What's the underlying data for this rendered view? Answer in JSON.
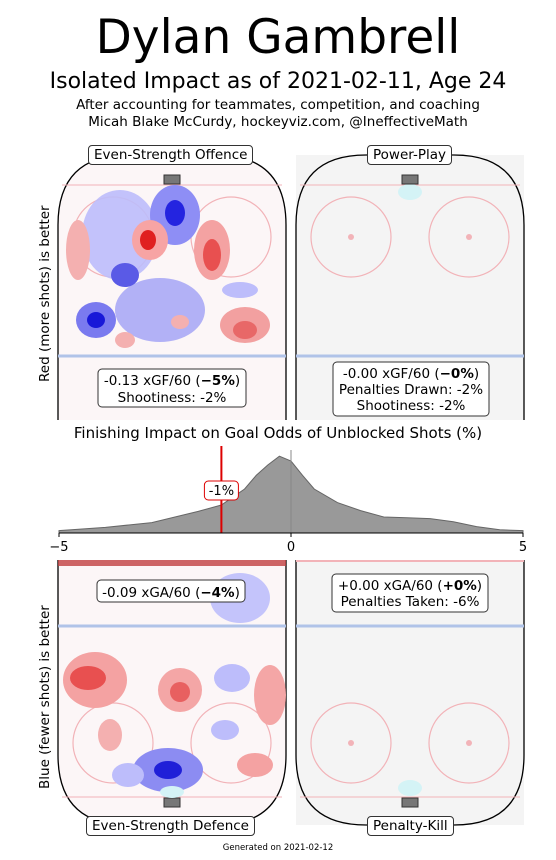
{
  "header": {
    "title": "Dylan Gambrell",
    "subtitle": "Isolated Impact as of 2021-02-11, Age 24",
    "line1": "After accounting for teammates, competition, and coaching",
    "line2": "Micah Blake McCurdy, hockeyviz.com, @IneffectiveMath"
  },
  "axis_labels": {
    "offence": "Red (more shots) is better",
    "defence": "Blue (fewer shots) is better"
  },
  "panels": {
    "ev_offence": {
      "label": "Even-Strength Offence",
      "stat_pre": "-0.13 xGF/60 (",
      "stat_bold": "−5%",
      "stat_post": ")",
      "line2": "Shootiness: -2%"
    },
    "powerplay": {
      "label": "Power-Play",
      "stat_pre": "-0.00 xGF/60 (",
      "stat_bold": "−0%",
      "stat_post": ")",
      "line2": "Penalties Drawn: -2%",
      "line3": "Shootiness: -2%"
    },
    "ev_defence": {
      "label": "Even-Strength Defence",
      "stat_pre": "-0.09 xGA/60 (",
      "stat_bold": "−4%",
      "stat_post": ")"
    },
    "penaltykill": {
      "label": "Penalty-Kill",
      "stat_pre": "+0.00 xGA/60 (",
      "stat_bold": "+0%",
      "stat_post": ")",
      "line2": "Penalties Taken: -6%"
    }
  },
  "colors": {
    "red": "#e8323c",
    "blue": "#2222dd",
    "density": "#8c8c8c",
    "marker": "#dd0000"
  },
  "chart_data": {
    "type": "area",
    "title": "Finishing Impact on Goal Odds of Unblocked Shots (%)",
    "xlim": [
      -5,
      5
    ],
    "xticks": [
      "−5",
      "0",
      "5"
    ],
    "marker": {
      "x": -1.5,
      "label": "-1%"
    },
    "x": [
      -5,
      -4.5,
      -4,
      -3.5,
      -3,
      -2.5,
      -2,
      -1.5,
      -1,
      -0.75,
      -0.5,
      -0.25,
      0,
      0.25,
      0.5,
      1,
      1.5,
      2,
      2.5,
      3,
      3.5,
      4,
      4.5,
      5
    ],
    "density": [
      0.03,
      0.05,
      0.07,
      0.1,
      0.13,
      0.2,
      0.27,
      0.35,
      0.55,
      0.72,
      0.85,
      0.96,
      0.9,
      0.72,
      0.55,
      0.38,
      0.28,
      0.2,
      0.19,
      0.18,
      0.14,
      0.08,
      0.04,
      0.03
    ]
  }
}
